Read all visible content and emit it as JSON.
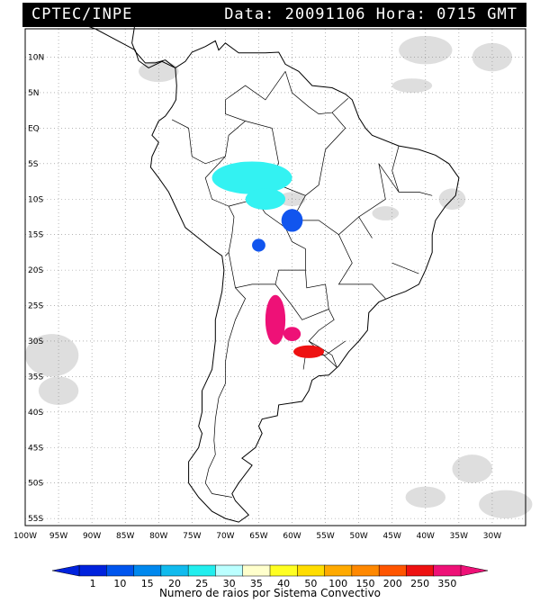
{
  "header": {
    "source": "CPTEC/INPE",
    "datetime": "Data: 20091106 Hora: 0715 GMT"
  },
  "map": {
    "lon_range": [
      -100,
      -25
    ],
    "lat_range": [
      -56,
      14
    ],
    "lat_ticks": [
      {
        "value": 10,
        "label": "10N"
      },
      {
        "value": 5,
        "label": "5N"
      },
      {
        "value": 0,
        "label": "EQ"
      },
      {
        "value": -5,
        "label": "5S"
      },
      {
        "value": -10,
        "label": "10S"
      },
      {
        "value": -15,
        "label": "15S"
      },
      {
        "value": -20,
        "label": "20S"
      },
      {
        "value": -25,
        "label": "25S"
      },
      {
        "value": -30,
        "label": "30S"
      },
      {
        "value": -35,
        "label": "35S"
      },
      {
        "value": -40,
        "label": "40S"
      },
      {
        "value": -45,
        "label": "45S"
      },
      {
        "value": -50,
        "label": "50S"
      },
      {
        "value": -55,
        "label": "55S"
      }
    ],
    "lon_ticks": [
      {
        "value": -100,
        "label": "100W"
      },
      {
        "value": -95,
        "label": "95W"
      },
      {
        "value": -90,
        "label": "90W"
      },
      {
        "value": -85,
        "label": "85W"
      },
      {
        "value": -80,
        "label": "80W"
      },
      {
        "value": -75,
        "label": "75W"
      },
      {
        "value": -70,
        "label": "70W"
      },
      {
        "value": -65,
        "label": "65W"
      },
      {
        "value": -60,
        "label": "60W"
      },
      {
        "value": -55,
        "label": "55W"
      },
      {
        "value": -50,
        "label": "50W"
      },
      {
        "value": -45,
        "label": "45W"
      },
      {
        "value": -40,
        "label": "40W"
      },
      {
        "value": -35,
        "label": "35W"
      },
      {
        "value": -30,
        "label": "30W"
      }
    ],
    "lightning_systems": [
      {
        "color": "#33f2f2",
        "lon": -66,
        "lat": -7,
        "rx": 6,
        "ry": 2.3
      },
      {
        "color": "#33f2f2",
        "lon": -64,
        "lat": -10,
        "rx": 3,
        "ry": 1.5
      },
      {
        "color": "#1155ee",
        "lon": -60,
        "lat": -13,
        "rx": 1.6,
        "ry": 1.6
      },
      {
        "color": "#1155ee",
        "lon": -65,
        "lat": -16.5,
        "rx": 1.0,
        "ry": 0.9
      },
      {
        "color": "#ee1177",
        "lon": -62.5,
        "lat": -27,
        "rx": 1.5,
        "ry": 3.5
      },
      {
        "color": "#ee1177",
        "lon": -60,
        "lat": -29,
        "rx": 1.3,
        "ry": 1.0
      },
      {
        "color": "#ee1111",
        "lon": -57.5,
        "lat": -31.5,
        "rx": 2.3,
        "ry": 0.9
      }
    ]
  },
  "legend": {
    "values": [
      "1",
      "10",
      "15",
      "20",
      "25",
      "30",
      "35",
      "40",
      "50",
      "100",
      "150",
      "200",
      "250",
      "350"
    ],
    "colors": [
      "#0022dd",
      "#0055ee",
      "#0088ee",
      "#11bbee",
      "#22eeee",
      "#bbffff",
      "#ffffcc",
      "#ffff22",
      "#ffdd00",
      "#ffaa00",
      "#ff8800",
      "#ff5500",
      "#ee1111",
      "#ee1177"
    ],
    "label": "Numero de raios por Sistema Convectivo"
  }
}
